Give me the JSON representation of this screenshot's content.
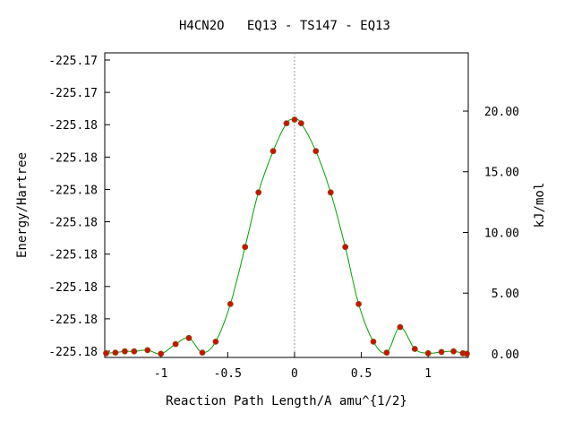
{
  "chart_data": {
    "type": "line",
    "title": "H4CN2O   EQ13 - TS147 - EQ13",
    "xlabel": "Reaction Path Length/A amu^{1/2}",
    "ylabel": "Energy/Hartree",
    "y2label": "kJ/mol",
    "xlim": [
      -1.42,
      1.3
    ],
    "y2lim": [
      -0.3,
      24.8
    ],
    "x_ticks": [
      {
        "value": -1,
        "label": "-1"
      },
      {
        "value": -0.5,
        "label": "-0.5"
      },
      {
        "value": 0,
        "label": "0"
      },
      {
        "value": 0.5,
        "label": "0.5"
      },
      {
        "value": 1,
        "label": "1"
      }
    ],
    "y_tick_labels": [
      "-225.17",
      "-225.17",
      "-225.18",
      "-225.18",
      "-225.18",
      "-225.18",
      "-225.18",
      "-225.18",
      "-225.18",
      "-225.18"
    ],
    "y2_ticks": [
      {
        "value": 0,
        "label": "0.00"
      },
      {
        "value": 5,
        "label": "5.00"
      },
      {
        "value": 10,
        "label": "10.00"
      },
      {
        "value": 15,
        "label": "15.00"
      },
      {
        "value": 20,
        "label": "20.00"
      }
    ],
    "ts_marker_x": 0,
    "line_color": "#00a000",
    "point_color": "#cc1100",
    "point_edge_color": "#8a4a00",
    "guide_color": "#999999",
    "series": [
      {
        "x": [
          -1.41,
          -1.34,
          -1.27,
          -1.2,
          -1.1,
          -1.0,
          -0.89,
          -0.79,
          -0.69,
          -0.59,
          -0.48,
          -0.37,
          -0.27,
          -0.16,
          -0.06,
          0.0,
          0.05,
          0.16,
          0.27,
          0.38,
          0.48,
          0.59,
          0.69,
          0.79,
          0.9,
          1.0,
          1.1,
          1.19,
          1.26,
          1.29
        ],
        "y": [
          0.05,
          0.1,
          0.2,
          0.2,
          0.3,
          0.0,
          0.8,
          1.3,
          0.1,
          1.0,
          4.1,
          8.8,
          13.3,
          16.7,
          19.0,
          19.3,
          19.0,
          16.7,
          13.3,
          8.8,
          4.1,
          1.0,
          0.1,
          2.2,
          0.4,
          0.05,
          0.15,
          0.2,
          0.05,
          0.0
        ]
      }
    ]
  }
}
